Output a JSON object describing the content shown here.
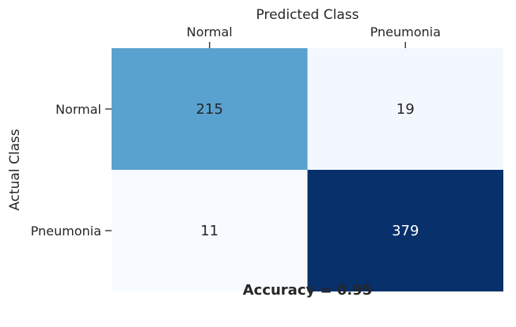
{
  "chart_data": {
    "type": "heatmap",
    "title": "",
    "xlabel": "Predicted Class",
    "ylabel": "Actual Class",
    "x_categories": [
      "Normal",
      "Pneumonia"
    ],
    "y_categories": [
      "Normal",
      "Pneumonia"
    ],
    "values": [
      [
        215,
        19
      ],
      [
        11,
        379
      ]
    ],
    "x_axis_position": "top",
    "colormap": "Blues",
    "colorbar": false,
    "annotation": "Accuracy = 0.95"
  }
}
